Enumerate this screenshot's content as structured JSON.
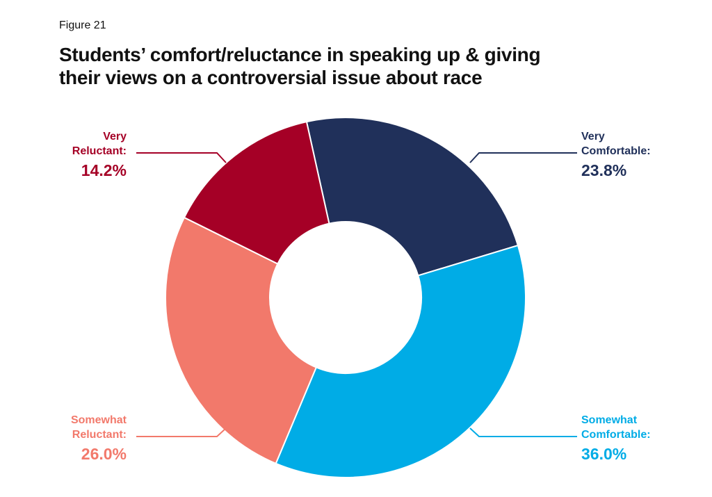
{
  "figure_label": "Figure 21",
  "chart_data": {
    "type": "pie",
    "donut": true,
    "title_lines": [
      "Students’ comfort/reluctance in speaking up & giving",
      "their views on a controversial issue about race"
    ],
    "slices": [
      {
        "name_lines": [
          "Very",
          "Comfortable:"
        ],
        "value": 23.8,
        "label": "23.8%",
        "color": "#20305a"
      },
      {
        "name_lines": [
          "Somewhat",
          "Comfortable:"
        ],
        "value": 36.0,
        "label": "36.0%",
        "color": "#00ace6"
      },
      {
        "name_lines": [
          "Somewhat",
          "Reluctant:"
        ],
        "value": 26.0,
        "label": "26.0%",
        "color": "#f2796b"
      },
      {
        "name_lines": [
          "Very",
          "Reluctant:"
        ],
        "value": 14.2,
        "label": "14.2%",
        "color": "#a50026"
      }
    ]
  }
}
